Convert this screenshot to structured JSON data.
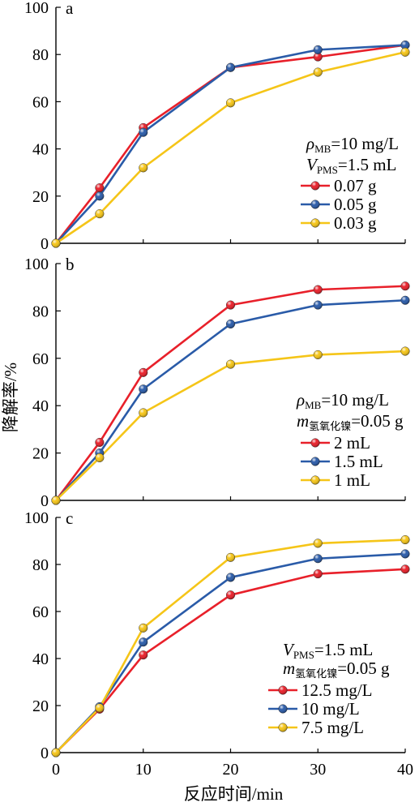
{
  "chart_data": [
    {
      "type": "line",
      "panel_label": "a",
      "x": [
        0,
        5,
        10,
        20,
        30,
        40
      ],
      "xlim": [
        0,
        40
      ],
      "ylim": [
        0,
        100
      ],
      "yticks": [
        0,
        20,
        40,
        60,
        80,
        100
      ],
      "conditions": [
        {
          "main": "ρ",
          "sub": "MB",
          "rest": "=10 mg/L",
          "italic_main": true
        },
        {
          "main": "V",
          "sub": "PMS",
          "rest": "=1.5 mL",
          "italic_main": true
        }
      ],
      "series": [
        {
          "name": "0.07 g",
          "color": "#e8202a",
          "values": [
            0,
            23.5,
            49,
            74.5,
            79,
            84
          ]
        },
        {
          "name": "0.05 g",
          "color": "#2a5ba8",
          "values": [
            0,
            20,
            47,
            74.5,
            82,
            84
          ]
        },
        {
          "name": "0.03 g",
          "color": "#f5c518",
          "values": [
            0,
            12.5,
            32,
            59.5,
            72.5,
            81
          ]
        }
      ]
    },
    {
      "type": "line",
      "panel_label": "b",
      "x": [
        0,
        5,
        10,
        20,
        30,
        40
      ],
      "xlim": [
        0,
        40
      ],
      "ylim": [
        0,
        100
      ],
      "yticks": [
        0,
        20,
        40,
        60,
        80,
        100
      ],
      "conditions": [
        {
          "main": "ρ",
          "sub": "MB",
          "rest": "=10 mg/L",
          "italic_main": true
        },
        {
          "main": "m",
          "sub": "氢氧化镍",
          "rest": "=0.05 g",
          "italic_main": true
        }
      ],
      "series": [
        {
          "name": "2 mL",
          "color": "#e8202a",
          "values": [
            0,
            24.5,
            54,
            82.5,
            89,
            90.5
          ]
        },
        {
          "name": "1.5 mL",
          "color": "#2a5ba8",
          "values": [
            0,
            20,
            47,
            74.5,
            82.5,
            84.5
          ]
        },
        {
          "name": "1 mL",
          "color": "#f5c518",
          "values": [
            0,
            18,
            37,
            57.5,
            61.5,
            63
          ]
        }
      ]
    },
    {
      "type": "line",
      "panel_label": "c",
      "x": [
        0,
        5,
        10,
        20,
        30,
        40
      ],
      "xlim": [
        0,
        40
      ],
      "ylim": [
        0,
        100
      ],
      "yticks": [
        0,
        20,
        40,
        60,
        80,
        100
      ],
      "xticks": [
        0,
        10,
        20,
        30,
        40
      ],
      "xlabel": "反应时间/min",
      "conditions": [
        {
          "main": "V",
          "sub": "PMS",
          "rest": "=1.5 mL",
          "italic_main": true
        },
        {
          "main": "m",
          "sub": "氢氧化镍",
          "rest": "=0.05 g",
          "italic_main": true
        }
      ],
      "series": [
        {
          "name": "12.5 mg/L",
          "color": "#e8202a",
          "values": [
            0,
            18.5,
            41.5,
            67,
            76,
            78
          ]
        },
        {
          "name": "10 mg/L",
          "color": "#2a5ba8",
          "values": [
            0,
            19.5,
            47,
            74.5,
            82.5,
            84.5
          ]
        },
        {
          "name": "7.5 mg/L",
          "color": "#f5c518",
          "values": [
            0,
            19,
            53,
            83,
            89,
            90.5
          ]
        }
      ]
    }
  ],
  "ylabel": "降解率/%"
}
